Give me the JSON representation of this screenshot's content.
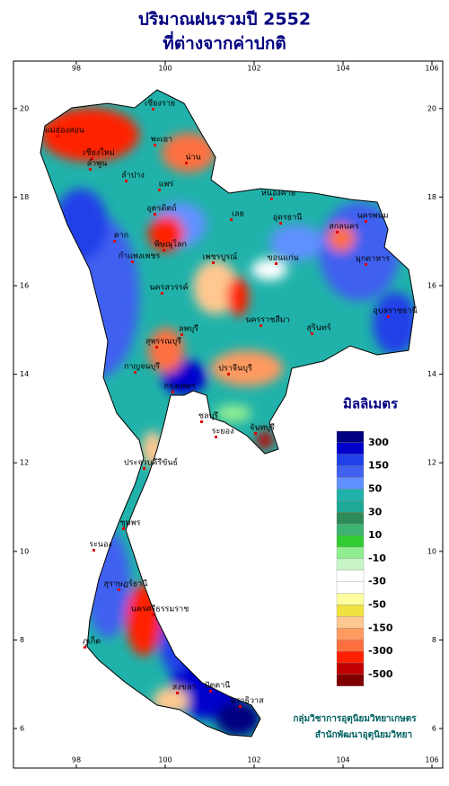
{
  "title": [
    "ปริมาณฝนรวมปี  2552",
    "ที่ต่างจากค่าปกติ"
  ],
  "axes": {
    "lon_ticks": [
      98,
      100,
      102,
      104,
      106
    ],
    "lat_ticks": [
      6,
      8,
      10,
      12,
      14,
      16,
      18,
      20
    ]
  },
  "legend": {
    "title": "มิลลิเมตร",
    "labels": [
      300,
      150,
      50,
      30,
      10,
      -10,
      -30,
      -50,
      -150,
      -300,
      -500
    ],
    "colors": [
      "#000080",
      "#0000cd",
      "#2040e8",
      "#4060f0",
      "#6090ff",
      "#20b2aa",
      "#1ea896",
      "#2e8b57",
      "#3cb371",
      "#32cd32",
      "#90ee90",
      "#c8f5c8",
      "#ffffff",
      "#ffffff",
      "#ffffa0",
      "#f0e040",
      "#ffc890",
      "#ff9a60",
      "#ff7040",
      "#ff2000",
      "#c00000",
      "#800000"
    ]
  },
  "places": [
    "เชียงราย",
    "แม่ฮ่องสอน",
    "พะเยา",
    "เชียงใหม่",
    "ลำพูน",
    "น่าน",
    "ลำปาง",
    "แพร่",
    "อุตรดิตถ์",
    "หนองคาย",
    "เลย",
    "อุดรธานี",
    "สกลนคร",
    "นครพนม",
    "ตาก",
    "พิษณุโลก",
    "กำแพงเพชร",
    "เพชรบูรณ์",
    "ขอนแก่น",
    "มุกดาหาร",
    "นครสวรรค์",
    "ลพบุรี",
    "นครราชสีมา",
    "สุรินทร์",
    "อุบลราชธานี",
    "สุพรรณบุรี",
    "กาญจนบุรี",
    "ปราจีนบุรี",
    "กรุงเทพฯ",
    "ชลบุรี",
    "ระยอง",
    "จันทบุรี",
    "ประจวบคีรีขันธ์",
    "ชุมพร",
    "ระนอง",
    "สุราษฎร์ธานี",
    "นครศรีธรรมราช",
    "ภูเก็ต",
    "สงขลา",
    "ปัตตานี",
    "นราธิวาส"
  ],
  "credits": [
    "กลุ่มวิชาการอุตุนิยมวิทยาเกษตร",
    "สำนักพัฒนาอุตุนิยมวิทยา"
  ]
}
